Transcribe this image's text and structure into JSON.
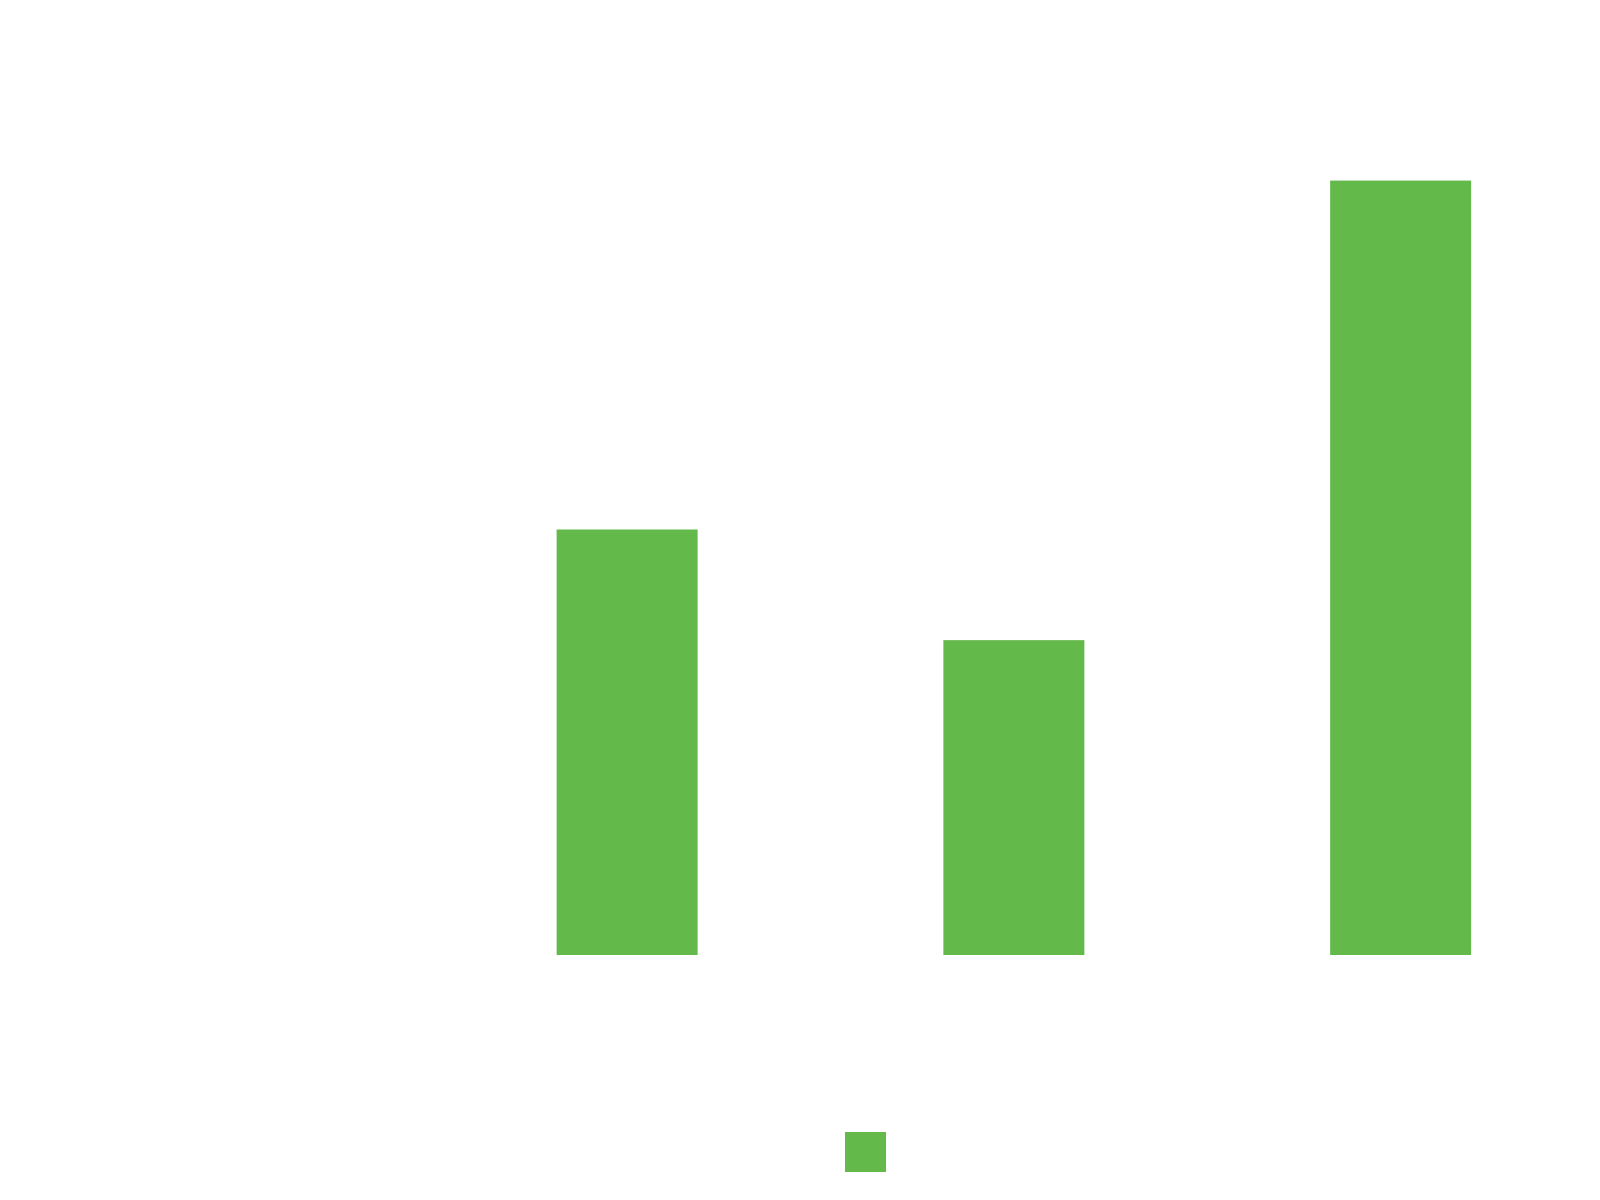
{
  "chart_data": {
    "type": "bar",
    "categories": [
      null,
      null,
      null,
      null
    ],
    "series": [
      {
        "name": null,
        "color": "#64b94b",
        "values": [
          null,
          50,
          37,
          91
        ]
      }
    ],
    "ylim": [
      0,
      100
    ],
    "legend": "bottom"
  }
}
